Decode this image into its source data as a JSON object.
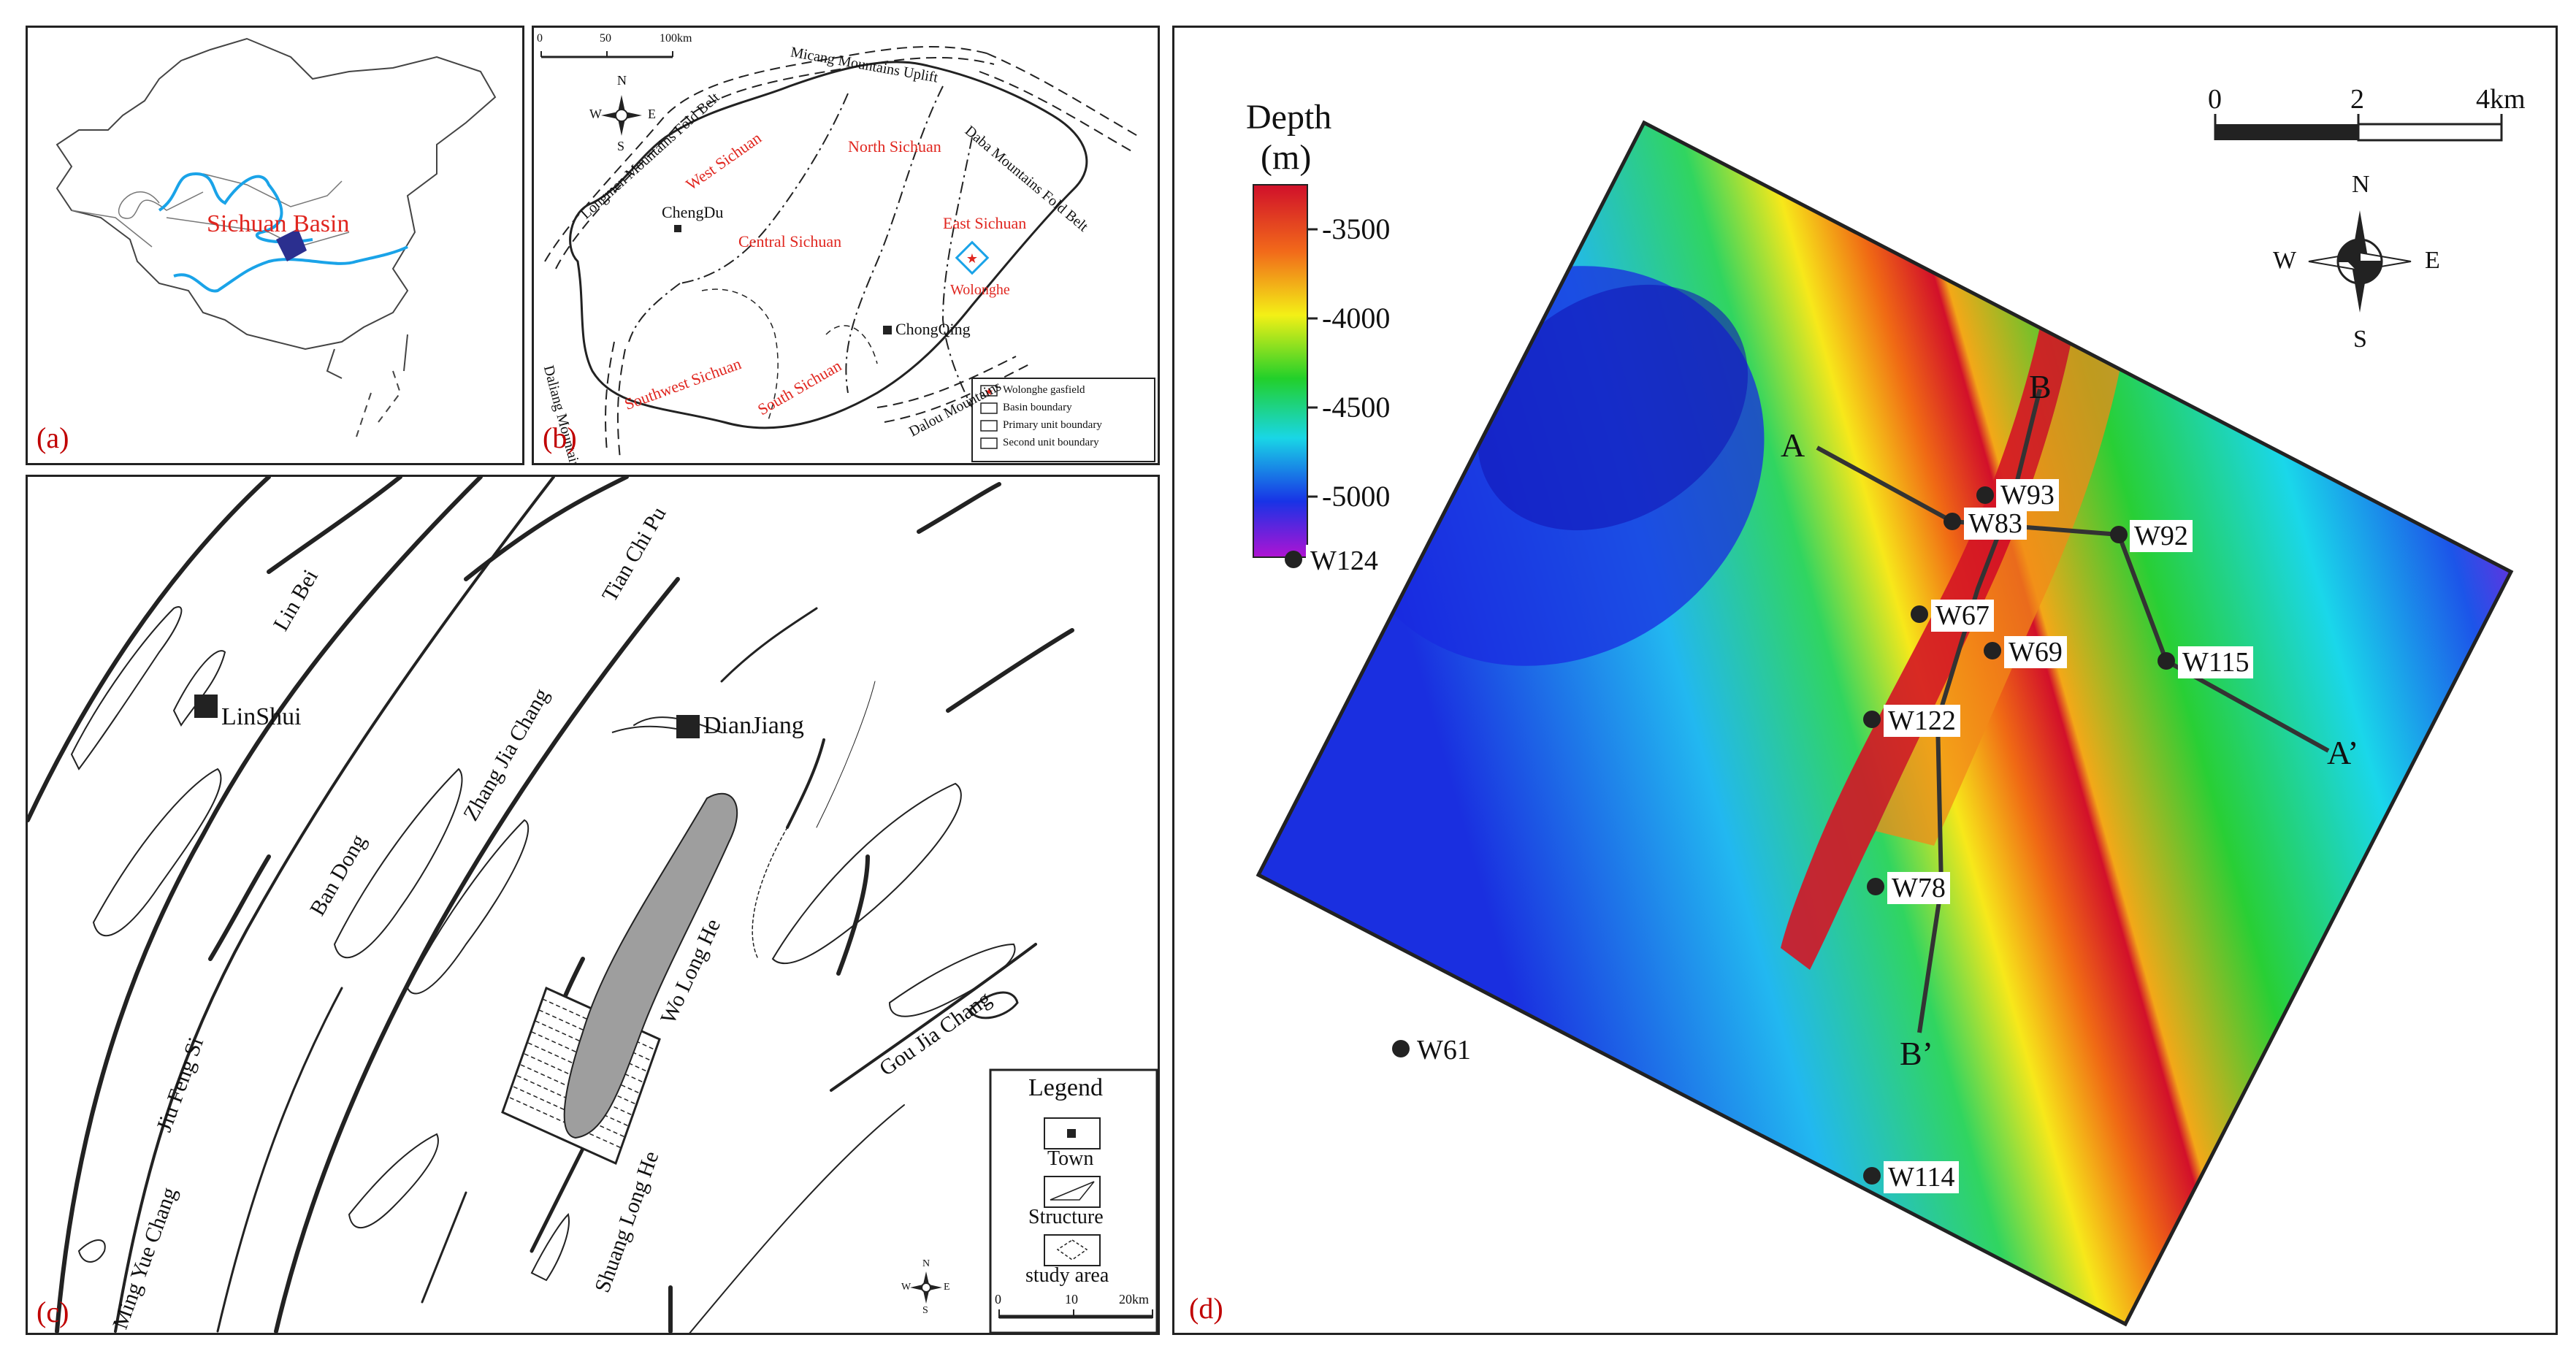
{
  "panel_labels": {
    "a": "(a)",
    "b": "(b)",
    "c": "(c)",
    "d": "(d)"
  },
  "panel_a": {
    "basin_label": "Sichuan Basin",
    "river_color": "#1aa3e8",
    "basin_color": "#2b2f8f"
  },
  "panel_b": {
    "scale_ticks": [
      "0",
      "50",
      "100km"
    ],
    "compass": {
      "n": "N",
      "s": "S",
      "e": "E",
      "w": "W"
    },
    "units": [
      "West Sichuan",
      "North Sichuan",
      "Central Sichuan",
      "East Sichuan",
      "Southwest Sichuan",
      "South Sichuan",
      "Wolonghe"
    ],
    "towns": [
      "ChengDu",
      "ChongQing"
    ],
    "mountains": [
      "Micang Mountains Uplift",
      "Daba Mountains Fold Belt",
      "Longmen Mountains Fold Belt",
      "Daliang Mountains",
      "Dalou Mountains"
    ],
    "legend": [
      "Wolonghe gasfield",
      "Basin boundary",
      "Primary unit boundary",
      "Second unit boundary"
    ]
  },
  "panel_c": {
    "towns": [
      "LinShui",
      "DianJiang"
    ],
    "structures": [
      "Lin Bei",
      "Tian Chi Pu",
      "Zhang Jia Chang",
      "Ban Dong",
      "Jiu Feng Si",
      "Wo Long He",
      "Gou Jia Chang",
      "Ming Yue Chang",
      "Shuang Long He"
    ],
    "legend": {
      "title": "Legend",
      "items": [
        "Town",
        "Structure",
        "study area"
      ]
    },
    "scale_ticks": [
      "0",
      "10",
      "20km"
    ],
    "compass": {
      "n": "N",
      "s": "S",
      "e": "E",
      "w": "W"
    }
  },
  "panel_d": {
    "colorbar": {
      "title": "Depth",
      "unit": "(m)",
      "ticks": [
        "-3500",
        "-4000",
        "-4500",
        "-5000"
      ]
    },
    "scale_ticks": [
      "0",
      "2",
      "4km"
    ],
    "compass": {
      "n": "N",
      "s": "S",
      "e": "E",
      "w": "W"
    },
    "wells": [
      "W93",
      "W83",
      "W92",
      "W124",
      "W67",
      "W69",
      "W115",
      "W122",
      "W78",
      "W61",
      "W114"
    ],
    "section_labels": {
      "a": "A",
      "a_prime": "A’",
      "b": "B",
      "b_prime": "B’"
    }
  }
}
